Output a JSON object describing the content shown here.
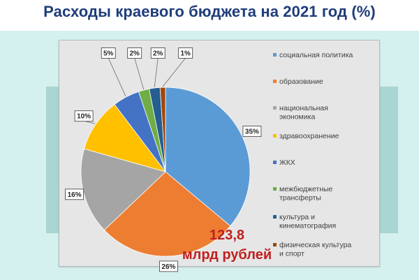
{
  "page": {
    "title": "Расходы краевого бюджета на 2021 год (%)"
  },
  "total": {
    "line1": "123,8",
    "line2": "млрд рублей"
  },
  "chart_data": {
    "type": "pie",
    "title": "",
    "legend_position": "right",
    "slices": [
      {
        "label": "социальная политика",
        "value": 35,
        "display": "35%",
        "color": "#5b9bd5"
      },
      {
        "label": "образование",
        "value": 26,
        "display": "26%",
        "color": "#ed7d31"
      },
      {
        "label": "национальная экономика",
        "value": 16,
        "display": "16%",
        "color": "#a5a5a5"
      },
      {
        "label": "здравоохранение",
        "value": 10,
        "display": "10%",
        "color": "#ffc000"
      },
      {
        "label": "ЖКХ",
        "value": 5,
        "display": "5%",
        "color": "#4472c4"
      },
      {
        "label": "межбюджетные трансферты",
        "value": 2,
        "display": "2%",
        "color": "#70ad47"
      },
      {
        "label": "культура и кинематография",
        "value": 2,
        "display": "2%",
        "color": "#255e91"
      },
      {
        "label": "физическая культура и спорт",
        "value": 1,
        "display": "1%",
        "color": "#9e480e"
      }
    ]
  }
}
